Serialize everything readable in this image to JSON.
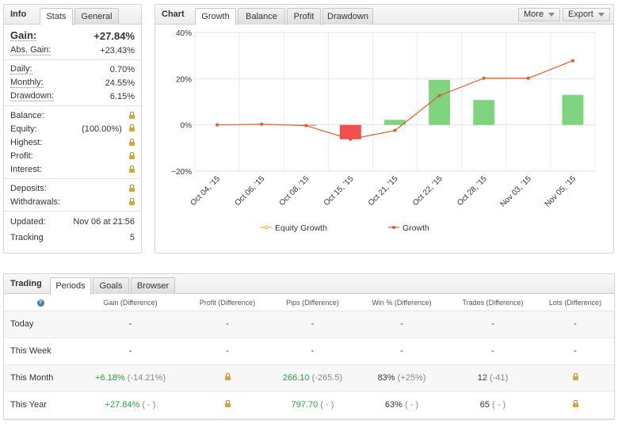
{
  "info": {
    "title": "Info",
    "tabs": [
      "Stats",
      "General"
    ],
    "gain_label": "Gain:",
    "gain_value": "+27.84%",
    "abs_gain_label": "Abs. Gain:",
    "abs_gain_value": "+23.43%",
    "daily_label": "Daily:",
    "daily_value": "0.70%",
    "monthly_label": "Monthly:",
    "monthly_value": "24.55%",
    "drawdown_label": "Drawdown:",
    "drawdown_value": "6.15%",
    "balance_label": "Balance:",
    "equity_label": "Equity:",
    "equity_value": "(100.00%)",
    "highest_label": "Highest:",
    "profit_label": "Profit:",
    "interest_label": "Interest:",
    "deposits_label": "Deposits:",
    "withdrawals_label": "Withdrawals:",
    "updated_label": "Updated:",
    "updated_value": "Nov 06 at 21:56",
    "tracking_label": "Tracking",
    "tracking_value": "5"
  },
  "chart_panel": {
    "title": "Chart",
    "tabs": [
      "Growth",
      "Balance",
      "Profit",
      "Drawdown"
    ],
    "more_label": "More",
    "export_label": "Export"
  },
  "chart_data": {
    "type": "bar+line",
    "categories": [
      "Oct 04, '15",
      "Oct 06, '15",
      "Oct 08, '15",
      "Oct 15, '15",
      "Oct 21, '15",
      "Oct 22, '15",
      "Oct 28, '15",
      "Nov 03, '15",
      "Nov 05, '15"
    ],
    "ylim": [
      -20,
      40
    ],
    "yticks": [
      "40%",
      "20%",
      "0%",
      "−20%"
    ],
    "ytick_values": [
      40,
      20,
      0,
      -20
    ],
    "series": [
      {
        "name": "Equity Growth",
        "type": "bar",
        "values": [
          0,
          0.3,
          -0.3,
          -6.2,
          2.2,
          19.5,
          10.8,
          0,
          13.0
        ]
      },
      {
        "name": "Growth",
        "type": "line",
        "values": [
          0,
          0.3,
          -0.3,
          -6.2,
          -2.4,
          12.7,
          20.2,
          20.2,
          27.8
        ]
      }
    ],
    "legend": [
      "Equity Growth",
      "Growth"
    ],
    "colors": {
      "positive": "#7fd47f",
      "negative": "#f25050",
      "line": "#e05a2a",
      "equity_marker": "#f0b429"
    }
  },
  "trading": {
    "title": "Trading",
    "tabs": [
      "Periods",
      "Goals",
      "Browser"
    ],
    "help_icon": "?",
    "columns": [
      "Gain (Difference)",
      "Profit (Difference)",
      "Pips (Difference)",
      "Win % (Difference)",
      "Trades (Difference)",
      "Lots (Difference)"
    ],
    "rows": [
      {
        "label": "Today",
        "gain": "-",
        "gain_diff": "",
        "profit_locked": false,
        "profit": "-",
        "pips": "-",
        "pips_diff": "",
        "win": "-",
        "win_diff": "",
        "trades": "-",
        "trades_diff": "",
        "lots_locked": false,
        "lots": "-"
      },
      {
        "label": "This Week",
        "gain": "-",
        "gain_diff": "",
        "profit_locked": false,
        "profit": "-",
        "pips": "-",
        "pips_diff": "",
        "win": "-",
        "win_diff": "",
        "trades": "-",
        "trades_diff": "",
        "lots_locked": false,
        "lots": "-"
      },
      {
        "label": "This Month",
        "gain": "+6.18%",
        "gain_diff": "(-14.21%)",
        "profit_locked": true,
        "profit": "",
        "pips": "266.10",
        "pips_diff": "(-265.5)",
        "win": "83%",
        "win_diff": "(+25%)",
        "trades": "12",
        "trades_diff": "(-41)",
        "lots_locked": true,
        "lots": ""
      },
      {
        "label": "This Year",
        "gain": "+27.84%",
        "gain_diff": "( - )",
        "profit_locked": true,
        "profit": "",
        "pips": "797.70",
        "pips_diff": "( - )",
        "win": "63%",
        "win_diff": "( - )",
        "trades": "65",
        "trades_diff": "( - )",
        "lots_locked": true,
        "lots": ""
      }
    ]
  }
}
